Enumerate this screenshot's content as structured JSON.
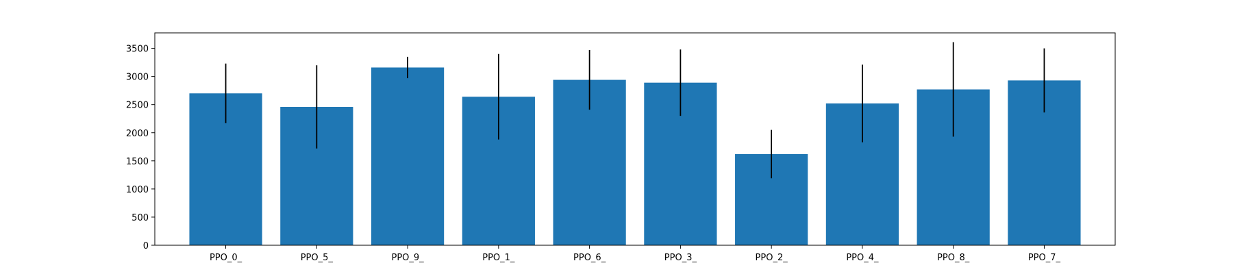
{
  "chart_data": {
    "type": "bar",
    "title": "",
    "xlabel": "",
    "ylabel": "",
    "categories": [
      "PPO_0_",
      "PPO_5_",
      "PPO_9_",
      "PPO_1_",
      "PPO_6_",
      "PPO_3_",
      "PPO_2_",
      "PPO_4_",
      "PPO_8_",
      "PPO_7_"
    ],
    "values": [
      2700,
      2460,
      3160,
      2640,
      2940,
      2890,
      1620,
      2520,
      2770,
      2930
    ],
    "errors": [
      530,
      740,
      190,
      760,
      530,
      590,
      430,
      690,
      840,
      570
    ],
    "ylim": [
      0,
      3775
    ],
    "yticks": [
      0,
      500,
      1000,
      1500,
      2000,
      2500,
      3000,
      3500
    ],
    "bar_color": "#1f77b4",
    "error_color": "#000000",
    "grid": false,
    "legend": "none"
  }
}
